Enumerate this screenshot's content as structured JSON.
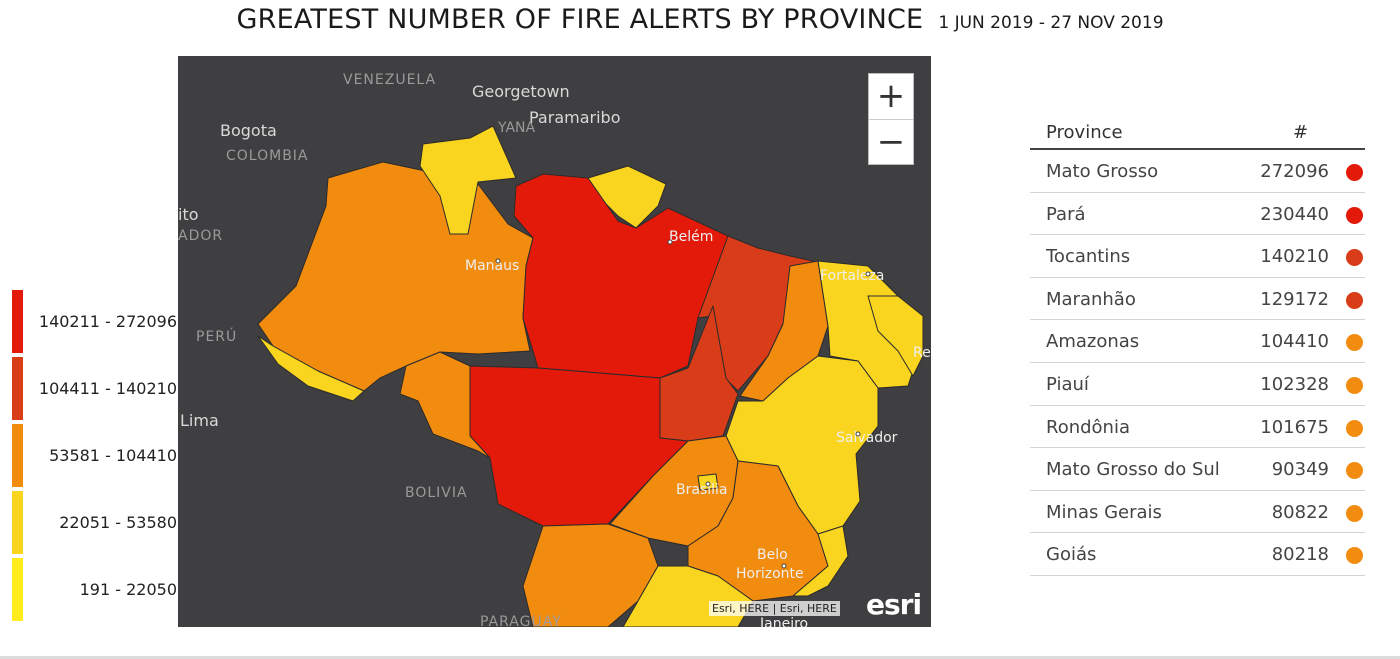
{
  "title": "GREATEST NUMBER OF FIRE ALERTS BY PROVINCE",
  "date_range": "1 JUN 2019 - 27 NOV 2019",
  "legend": [
    {
      "label": "140211 - 272096",
      "color": "#e31a0a"
    },
    {
      "label": "104411 - 140210",
      "color": "#d93c18"
    },
    {
      "label": "53581 - 104410",
      "color": "#f28c0f"
    },
    {
      "label": "22051 - 53580",
      "color": "#fad51f"
    },
    {
      "label": "191 - 22050",
      "color": "#ffec1a"
    }
  ],
  "map": {
    "colors": {
      "background": "#3f3f41",
      "class1": "#e31a0a",
      "class2": "#d93c18",
      "class3": "#f28c0f",
      "class4": "#fad51f",
      "class5": "#ffec1a"
    },
    "labels": {
      "venezuela": "VENEZUELA",
      "georgetown": "Georgetown",
      "paramaribo": "Paramaribo",
      "guyana": "YANA",
      "bogota": "Bogota",
      "colombia": "COLOMBIA",
      "quito": "ito",
      "ecuador": "ADOR",
      "peru": "PERÚ",
      "lima": "Lima",
      "bolivia": "BOLIVIA",
      "paraguay": "PARAGUAY",
      "manaus": "Manaus",
      "belem": "Belém",
      "fortaleza": "Fortaleza",
      "recife": "Re",
      "salvador": "Salvador",
      "brasilia": "Brasília",
      "belo1": "Belo",
      "belo2": "Horizonte",
      "janeiro": "Janeiro"
    },
    "zoom_in": "+",
    "zoom_out": "−",
    "attribution": "Esri, HERE | Esri, HERE",
    "logo": "esri"
  },
  "table": {
    "header_province": "Province",
    "header_count": "#",
    "rows": [
      {
        "province": "Mato Grosso",
        "count": "272096",
        "color": "#e31a0a"
      },
      {
        "province": "Pará",
        "count": "230440",
        "color": "#e31a0a"
      },
      {
        "province": "Tocantins",
        "count": "140210",
        "color": "#d93c18"
      },
      {
        "province": "Maranhão",
        "count": "129172",
        "color": "#d93c18"
      },
      {
        "province": "Amazonas",
        "count": "104410",
        "color": "#f28c0f"
      },
      {
        "province": "Piauí",
        "count": "102328",
        "color": "#f28c0f"
      },
      {
        "province": "Rondônia",
        "count": "101675",
        "color": "#f28c0f"
      },
      {
        "province": "Mato Grosso do Sul",
        "count": "90349",
        "color": "#f28c0f"
      },
      {
        "province": "Minas Gerais",
        "count": "80822",
        "color": "#f28c0f"
      },
      {
        "province": "Goiás",
        "count": "80218",
        "color": "#f28c0f"
      }
    ]
  }
}
